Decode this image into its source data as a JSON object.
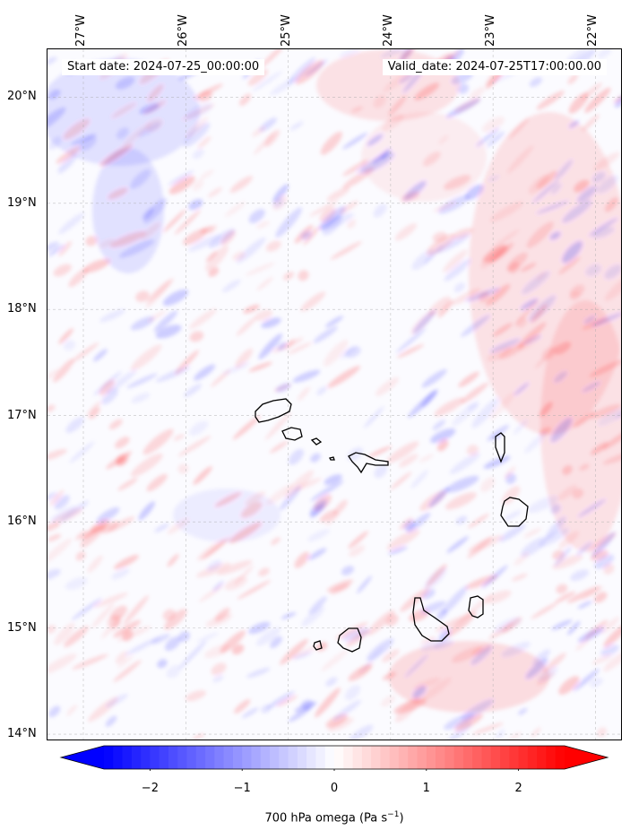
{
  "map": {
    "start_label": "Start date: 2024-07-25_00:00:00",
    "valid_label": "Valid_date: 2024-07-25T17:00:00.00",
    "extent": {
      "lon": [
        -27.35,
        -21.75
      ],
      "lat": [
        13.95,
        20.45
      ]
    },
    "lon_ticks": [
      {
        "value": -27,
        "label": "27°W"
      },
      {
        "value": -26,
        "label": "26°W"
      },
      {
        "value": -25,
        "label": "25°W"
      },
      {
        "value": -24,
        "label": "24°W"
      },
      {
        "value": -23,
        "label": "23°W"
      },
      {
        "value": -22,
        "label": "22°W"
      }
    ],
    "lat_ticks": [
      {
        "value": 20,
        "label": "20°N"
      },
      {
        "value": 19,
        "label": "19°N"
      },
      {
        "value": 18,
        "label": "18°N"
      },
      {
        "value": 17,
        "label": "17°N"
      },
      {
        "value": 16,
        "label": "16°N"
      },
      {
        "value": 15,
        "label": "15°N"
      },
      {
        "value": 14,
        "label": "14°N"
      }
    ],
    "gridlines": true,
    "field_colors": {
      "positive": "#ff0000",
      "negative": "#0000ff",
      "neutral": "#ffffff"
    }
  },
  "colorbar": {
    "label": "700 hPa omega (Pa s",
    "label_exponent": "−1",
    "label_close": ")",
    "range": [
      -2.5,
      2.5
    ],
    "ticks": [
      {
        "value": -2,
        "label": "−2"
      },
      {
        "value": -1,
        "label": "−1"
      },
      {
        "value": 0,
        "label": "0"
      },
      {
        "value": 1,
        "label": "1"
      },
      {
        "value": 2,
        "label": "2"
      }
    ],
    "colormap": "bwr",
    "extend": "both"
  }
}
